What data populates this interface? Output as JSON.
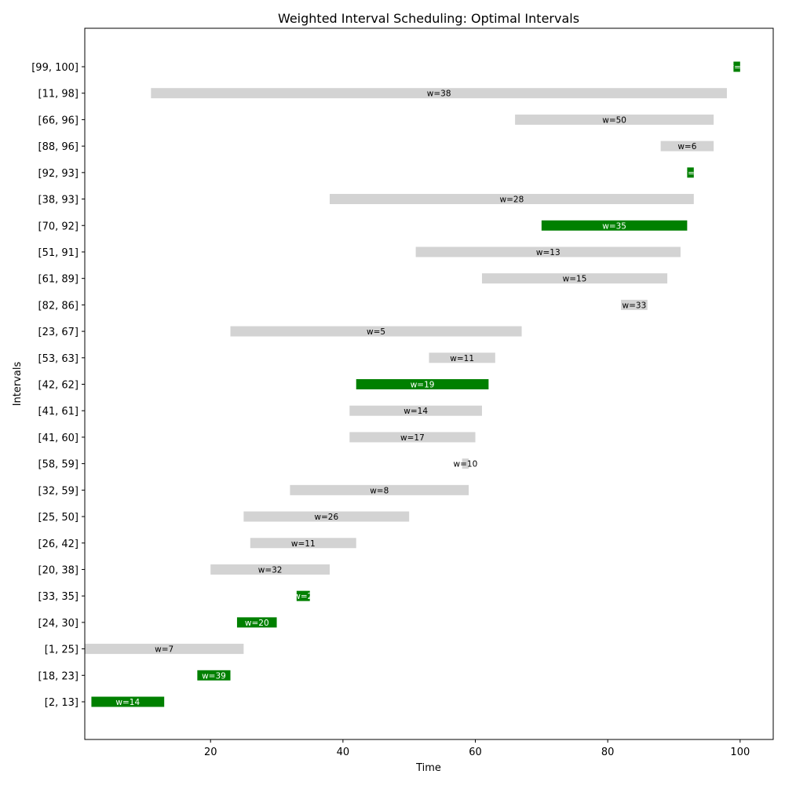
{
  "chart_data": {
    "type": "bar",
    "orientation": "horizontal",
    "title": "Weighted Interval Scheduling: Optimal Intervals",
    "xlabel": "Time",
    "ylabel": "Intervals",
    "xlim": [
      1,
      105
    ],
    "xticks": [
      20,
      40,
      60,
      80,
      100
    ],
    "grid": false,
    "colors": {
      "selected": "#008000",
      "unselected": "#d3d3d3",
      "label_on_selected": "#ffffff",
      "label_on_unselected": "#000000"
    },
    "intervals": [
      {
        "label": "[2, 13]",
        "start": 2,
        "end": 13,
        "weight_label": "w=14",
        "selected": true
      },
      {
        "label": "[18, 23]",
        "start": 18,
        "end": 23,
        "weight_label": "w=39",
        "selected": true
      },
      {
        "label": "[1, 25]",
        "start": 1,
        "end": 25,
        "weight_label": "w=7",
        "selected": false
      },
      {
        "label": "[24, 30]",
        "start": 24,
        "end": 30,
        "weight_label": "w=20",
        "selected": true
      },
      {
        "label": "[33, 35]",
        "start": 33,
        "end": 35,
        "weight_label": "w=2",
        "selected": true
      },
      {
        "label": "[20, 38]",
        "start": 20,
        "end": 38,
        "weight_label": "w=32",
        "selected": false
      },
      {
        "label": "[26, 42]",
        "start": 26,
        "end": 42,
        "weight_label": "w=11",
        "selected": false
      },
      {
        "label": "[25, 50]",
        "start": 25,
        "end": 50,
        "weight_label": "w=26",
        "selected": false
      },
      {
        "label": "[32, 59]",
        "start": 32,
        "end": 59,
        "weight_label": "w=8",
        "selected": false
      },
      {
        "label": "[58, 59]",
        "start": 58,
        "end": 59,
        "weight_label": "w=10",
        "selected": false
      },
      {
        "label": "[41, 60]",
        "start": 41,
        "end": 60,
        "weight_label": "w=17",
        "selected": false
      },
      {
        "label": "[41, 61]",
        "start": 41,
        "end": 61,
        "weight_label": "w=14",
        "selected": false
      },
      {
        "label": "[42, 62]",
        "start": 42,
        "end": 62,
        "weight_label": "w=19",
        "selected": true
      },
      {
        "label": "[53, 63]",
        "start": 53,
        "end": 63,
        "weight_label": "w=11",
        "selected": false
      },
      {
        "label": "[23, 67]",
        "start": 23,
        "end": 67,
        "weight_label": "w=5",
        "selected": false
      },
      {
        "label": "[82, 86]",
        "start": 82,
        "end": 86,
        "weight_label": "w=33",
        "selected": false
      },
      {
        "label": "[61, 89]",
        "start": 61,
        "end": 89,
        "weight_label": "w=15",
        "selected": false
      },
      {
        "label": "[51, 91]",
        "start": 51,
        "end": 91,
        "weight_label": "w=13",
        "selected": false
      },
      {
        "label": "[70, 92]",
        "start": 70,
        "end": 92,
        "weight_label": "w=35",
        "selected": true
      },
      {
        "label": "[38, 93]",
        "start": 38,
        "end": 93,
        "weight_label": "w=28",
        "selected": false
      },
      {
        "label": "[92, 93]",
        "start": 92,
        "end": 93,
        "weight_label": "w=2",
        "selected": true
      },
      {
        "label": "[88, 96]",
        "start": 88,
        "end": 96,
        "weight_label": "w=6",
        "selected": false
      },
      {
        "label": "[66, 96]",
        "start": 66,
        "end": 96,
        "weight_label": "w=50",
        "selected": false
      },
      {
        "label": "[11, 98]",
        "start": 11,
        "end": 98,
        "weight_label": "w=38",
        "selected": false
      },
      {
        "label": "[99, 100]",
        "start": 99,
        "end": 100,
        "weight_label": "w=3",
        "selected": true
      }
    ]
  }
}
